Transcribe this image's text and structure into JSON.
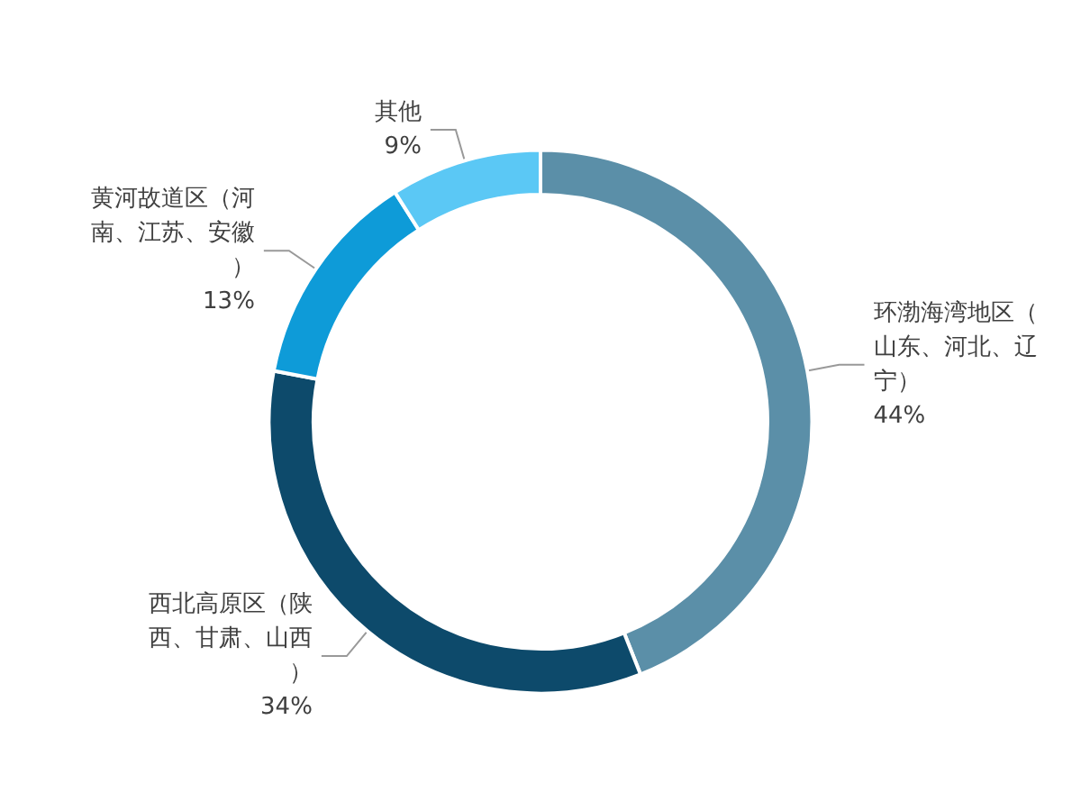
{
  "chart_data": {
    "type": "donut",
    "categories": [
      "环渤海湾地区（山东、河北、辽宁）",
      "西北高原区（陕西、甘肃、山西）",
      "黄河故道区（河南、江苏、安徽）",
      "其他"
    ],
    "values": [
      44,
      34,
      13,
      9
    ],
    "colors": [
      "#5b8fa8",
      "#0d4a6b",
      "#0e9bd8",
      "#5bc8f5"
    ],
    "value_labels": [
      "44%",
      "34%",
      "13%",
      "9%"
    ],
    "legend": false
  }
}
